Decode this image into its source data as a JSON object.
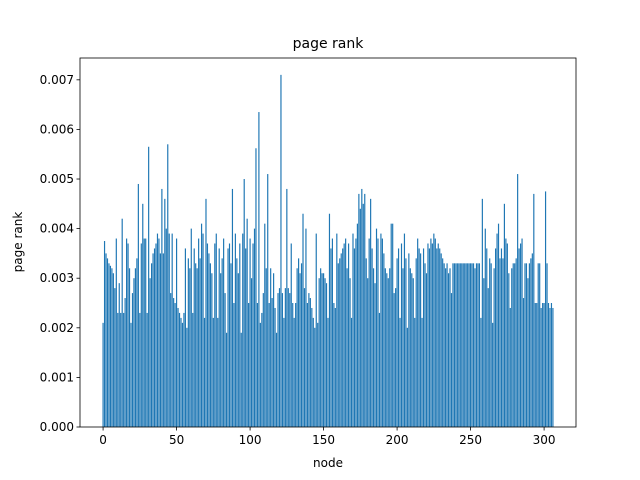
{
  "chart_data": {
    "type": "bar",
    "title": "page rank",
    "xlabel": "node",
    "ylabel": "page rank",
    "color": "#1f77b4",
    "x": [
      0,
      1,
      2,
      3,
      4,
      5,
      6,
      7,
      8,
      9,
      10,
      11,
      12,
      13,
      14,
      15,
      16,
      17,
      18,
      19,
      20,
      21,
      22,
      23,
      24,
      25,
      26,
      27,
      28,
      29,
      30,
      31,
      32,
      33,
      34,
      35,
      36,
      37,
      38,
      39,
      40,
      41,
      42,
      43,
      44,
      45,
      46,
      47,
      48,
      49,
      50,
      51,
      52,
      53,
      54,
      55,
      56,
      57,
      58,
      59,
      60,
      61,
      62,
      63,
      64,
      65,
      66,
      67,
      68,
      69,
      70,
      71,
      72,
      73,
      74,
      75,
      76,
      77,
      78,
      79,
      80,
      81,
      82,
      83,
      84,
      85,
      86,
      87,
      88,
      89,
      90,
      91,
      92,
      93,
      94,
      95,
      96,
      97,
      98,
      99,
      100,
      101,
      102,
      103,
      104,
      105,
      106,
      107,
      108,
      109,
      110,
      111,
      112,
      113,
      114,
      115,
      116,
      117,
      118,
      119,
      120,
      121,
      122,
      123,
      124,
      125,
      126,
      127,
      128,
      129,
      130,
      131,
      132,
      133,
      134,
      135,
      136,
      137,
      138,
      139,
      140,
      141,
      142,
      143,
      144,
      145,
      146,
      147,
      148,
      149,
      150,
      151,
      152,
      153,
      154,
      155,
      156,
      157,
      158,
      159,
      160,
      161,
      162,
      163,
      164,
      165,
      166,
      167,
      168,
      169,
      170,
      171,
      172,
      173,
      174,
      175,
      176,
      177,
      178,
      179,
      180,
      181,
      182,
      183,
      184,
      185,
      186,
      187,
      188,
      189,
      190,
      191,
      192,
      193,
      194,
      195,
      196,
      197,
      198,
      199,
      200,
      201,
      202,
      203,
      204,
      205,
      206,
      207,
      208,
      209,
      210,
      211,
      212,
      213,
      214,
      215,
      216,
      217,
      218,
      219,
      220,
      221,
      222,
      223,
      224,
      225,
      226,
      227,
      228,
      229,
      230,
      231,
      232,
      233,
      234,
      235,
      236,
      237,
      238,
      239,
      240,
      241,
      242,
      243,
      244,
      245,
      246,
      247,
      248,
      249,
      250,
      251,
      252,
      253,
      254,
      255,
      256,
      257,
      258,
      259,
      260,
      261,
      262,
      263,
      264,
      265,
      266,
      267,
      268,
      269,
      270,
      271,
      272,
      273,
      274,
      275,
      276,
      277,
      278,
      279,
      280,
      281,
      282,
      283,
      284,
      285,
      286,
      287,
      288,
      289,
      290,
      291,
      292,
      293,
      294,
      295,
      296,
      297,
      298,
      299,
      300,
      301,
      302,
      303,
      304,
      305,
      306
    ],
    "values": [
      0.0021,
      0.00375,
      0.0035,
      0.0034,
      0.0033,
      0.00325,
      0.0032,
      0.0031,
      0.0028,
      0.0038,
      0.0023,
      0.0029,
      0.0023,
      0.0042,
      0.0023,
      0.0026,
      0.0038,
      0.0037,
      0.0032,
      0.0021,
      0.0027,
      0.003,
      0.0032,
      0.0034,
      0.0049,
      0.0023,
      0.0037,
      0.0045,
      0.0038,
      0.0038,
      0.0023,
      0.00565,
      0.003,
      0.0033,
      0.0035,
      0.0036,
      0.0037,
      0.0039,
      0.0038,
      0.0035,
      0.0048,
      0.0035,
      0.0046,
      0.004,
      0.0057,
      0.0039,
      0.0027,
      0.0039,
      0.0026,
      0.0025,
      0.0038,
      0.0024,
      0.0023,
      0.0022,
      0.0021,
      0.0023,
      0.0036,
      0.002,
      0.0034,
      0.0032,
      0.004,
      0.0023,
      0.0036,
      0.0033,
      0.0032,
      0.0038,
      0.0034,
      0.0041,
      0.0039,
      0.0022,
      0.0046,
      0.0037,
      0.0035,
      0.0033,
      0.0031,
      0.0022,
      0.0037,
      0.0039,
      0.0022,
      0.0036,
      0.0031,
      0.0034,
      0.0038,
      0.0027,
      0.0019,
      0.0036,
      0.0037,
      0.0033,
      0.0048,
      0.0025,
      0.0039,
      0.0034,
      0.0031,
      0.0037,
      0.0019,
      0.0039,
      0.005,
      0.0036,
      0.0042,
      0.0025,
      0.0038,
      0.003,
      0.0037,
      0.004,
      0.00562,
      0.0025,
      0.00635,
      0.0021,
      0.0023,
      0.0027,
      0.0041,
      0.0032,
      0.0051,
      0.0025,
      0.0032,
      0.0026,
      0.0031,
      0.0024,
      0.0019,
      0.0027,
      0.0028,
      0.0071,
      0.0027,
      0.0022,
      0.0028,
      0.0048,
      0.0028,
      0.0027,
      0.0037,
      0.0025,
      0.0022,
      0.0025,
      0.0032,
      0.0034,
      0.0031,
      0.0033,
      0.0043,
      0.0028,
      0.004,
      0.0025,
      0.0027,
      0.0026,
      0.0024,
      0.0022,
      0.002,
      0.0039,
      0.0021,
      0.003,
      0.0032,
      0.0031,
      0.0031,
      0.003,
      0.0029,
      0.0022,
      0.0043,
      0.0036,
      0.0038,
      0.0025,
      0.0024,
      0.0039,
      0.0033,
      0.0034,
      0.0035,
      0.0036,
      0.0037,
      0.0038,
      0.0032,
      0.0037,
      0.003,
      0.0022,
      0.0039,
      0.0036,
      0.0038,
      0.0041,
      0.0047,
      0.0044,
      0.0048,
      0.0045,
      0.0047,
      0.0034,
      0.003,
      0.0038,
      0.0046,
      0.0036,
      0.0032,
      0.0029,
      0.004,
      0.0038,
      0.0023,
      0.0039,
      0.0038,
      0.0035,
      0.0032,
      0.0031,
      0.003,
      0.0032,
      0.0041,
      0.0041,
      0.0027,
      0.0028,
      0.0034,
      0.0036,
      0.0022,
      0.0037,
      0.0032,
      0.0039,
      0.0034,
      0.002,
      0.0035,
      0.0032,
      0.0031,
      0.003,
      0.0022,
      0.0034,
      0.0038,
      0.0036,
      0.0035,
      0.0022,
      0.0036,
      0.0033,
      0.0031,
      0.0037,
      0.0036,
      0.0038,
      0.0037,
      0.0039,
      0.0038,
      0.0036,
      0.0037,
      0.0036,
      0.0035,
      0.0034,
      0.0033,
      0.0032,
      0.0033,
      0.0031,
      0.0032,
      0.0027,
      0.0033,
      0.0033,
      0.0033,
      0.0033,
      0.0033,
      0.0033,
      0.0033,
      0.0033,
      0.0033,
      0.0033,
      0.0033,
      0.0033,
      0.0033,
      0.0033,
      0.0033,
      0.0032,
      0.0033,
      0.0033,
      0.0033,
      0.0022,
      0.0046,
      0.003,
      0.004,
      0.0036,
      0.0028,
      0.0034,
      0.0033,
      0.0021,
      0.0032,
      0.0036,
      0.0039,
      0.0041,
      0.0034,
      0.0036,
      0.0034,
      0.0045,
      0.0038,
      0.0037,
      0.0031,
      0.0024,
      0.0032,
      0.0033,
      0.0033,
      0.0034,
      0.0051,
      0.0036,
      0.0037,
      0.0038,
      0.0026,
      0.0033,
      0.0033,
      0.003,
      0.0033,
      0.0034,
      0.0035,
      0.0047,
      0.0025,
      0.0025,
      0.0033,
      0.0033,
      0.0024,
      0.0025,
      0.0025,
      0.00475,
      0.0033,
      0.0025,
      0.0024,
      0.0025,
      0.0024
    ],
    "xlim": [
      -15.7,
      321.7
    ],
    "xticks": [
      0,
      50,
      100,
      150,
      200,
      250,
      300
    ],
    "ylim": [
      0,
      0.00744
    ],
    "yticks": [
      {
        "value": 0,
        "label": "0.000"
      },
      0.001,
      0.002,
      0.003,
      0.004,
      0.005,
      0.006,
      0.007
    ],
    "grid": false
  }
}
